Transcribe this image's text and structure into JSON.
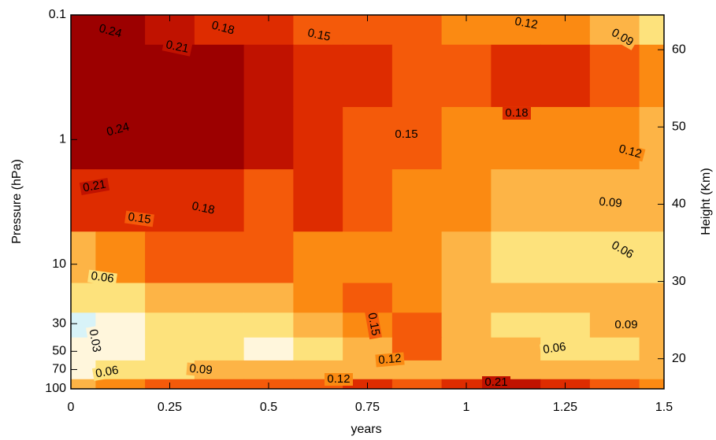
{
  "chart_data": {
    "type": "contour",
    "x_label": "years",
    "y_label": "Pressure (hPa)",
    "y2_label": "Height (Km)",
    "x": [
      0,
      0.125,
      0.25,
      0.375,
      0.5,
      0.625,
      0.75,
      0.875,
      1,
      1.125,
      1.25,
      1.375,
      1.5
    ],
    "y": [
      0.1,
      0.3,
      1,
      3,
      10,
      20,
      30,
      50,
      70,
      100
    ],
    "z": [
      [
        0.25,
        0.24,
        0.22,
        0.2,
        0.18,
        0.16,
        0.15,
        0.15,
        0.14,
        0.13,
        0.12,
        0.1,
        0.08
      ],
      [
        0.26,
        0.26,
        0.26,
        0.25,
        0.23,
        0.2,
        0.18,
        0.17,
        0.17,
        0.18,
        0.19,
        0.16,
        0.12
      ],
      [
        0.26,
        0.26,
        0.26,
        0.25,
        0.22,
        0.19,
        0.17,
        0.15,
        0.14,
        0.13,
        0.13,
        0.12,
        0.11
      ],
      [
        0.2,
        0.19,
        0.18,
        0.19,
        0.17,
        0.18,
        0.16,
        0.13,
        0.12,
        0.11,
        0.1,
        0.09,
        0.09
      ],
      [
        0.11,
        0.14,
        0.16,
        0.16,
        0.16,
        0.14,
        0.14,
        0.12,
        0.1,
        0.08,
        0.06,
        0.07,
        0.08
      ],
      [
        0.06,
        0.07,
        0.09,
        0.1,
        0.11,
        0.12,
        0.16,
        0.13,
        0.1,
        0.09,
        0.1,
        0.09,
        0.1
      ],
      [
        0.02,
        0.04,
        0.07,
        0.08,
        0.07,
        0.09,
        0.12,
        0.16,
        0.1,
        0.07,
        0.08,
        0.09,
        0.1
      ],
      [
        0.04,
        0.05,
        0.07,
        0.06,
        0.04,
        0.07,
        0.1,
        0.15,
        0.11,
        0.09,
        0.07,
        0.08,
        0.09
      ],
      [
        0.05,
        0.06,
        0.08,
        0.09,
        0.09,
        0.09,
        0.1,
        0.1,
        0.1,
        0.09,
        0.09,
        0.1,
        0.1
      ],
      [
        0.1,
        0.12,
        0.16,
        0.16,
        0.17,
        0.17,
        0.18,
        0.17,
        0.2,
        0.21,
        0.2,
        0.15,
        0.13
      ]
    ],
    "levels": [
      0.03,
      0.06,
      0.09,
      0.12,
      0.15,
      0.18,
      0.21,
      0.24
    ],
    "colors": [
      "#d8f3f8",
      "#fff6dc",
      "#fde27c",
      "#fdb446",
      "#fb8a12",
      "#f45a0a",
      "#de2c00",
      "#c01200",
      "#9c0000"
    ],
    "xlim": [
      0,
      1.5
    ],
    "xticks": [
      0,
      0.25,
      0.5,
      0.75,
      1,
      1.25,
      1.5
    ],
    "ylim": [
      100,
      0.1
    ],
    "yticks": [
      0.1,
      1,
      10,
      30,
      50,
      70,
      100
    ],
    "ylog": true,
    "y2lim": [
      16.1,
      64.5
    ],
    "y2ticks": [
      20,
      30,
      40,
      50,
      60
    ]
  }
}
